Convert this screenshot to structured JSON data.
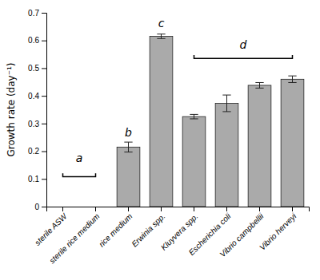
{
  "chart_data": {
    "type": "bar",
    "categories": [
      "sterile ASW",
      "sterile rice medium",
      "rice medium",
      "Erwinia spp.",
      "Kluyvera spp.",
      "Escherichia coli",
      "Vibrio campbellii",
      "Vibrio herveyi"
    ],
    "values": [
      0.0,
      0.0,
      0.215,
      0.615,
      0.325,
      0.373,
      0.438,
      0.46
    ],
    "errors": [
      0.0,
      0.0,
      0.018,
      0.008,
      0.008,
      0.03,
      0.01,
      0.012
    ],
    "color": "#aaaaaa",
    "ylabel": "Growth rate (day⁻¹)",
    "ylim": [
      0,
      0.7
    ],
    "yticks": [
      0,
      0.1,
      0.2,
      0.3,
      0.4,
      0.5,
      0.6,
      0.7
    ],
    "grid": false,
    "annotations": [
      {
        "text": "a",
        "y": 0.155,
        "bracket": {
          "from": "sterile ASW",
          "to": "sterile rice medium",
          "y": 0.108
        }
      },
      {
        "text": "b",
        "y": 0.248,
        "category": "rice medium"
      },
      {
        "text": "c",
        "y": 0.642,
        "category": "Erwinia spp."
      },
      {
        "text": "d",
        "y": 0.565,
        "bracket": {
          "from": "Kluyvera spp.",
          "to": "Vibrio herveyi",
          "y": 0.535
        }
      }
    ]
  }
}
